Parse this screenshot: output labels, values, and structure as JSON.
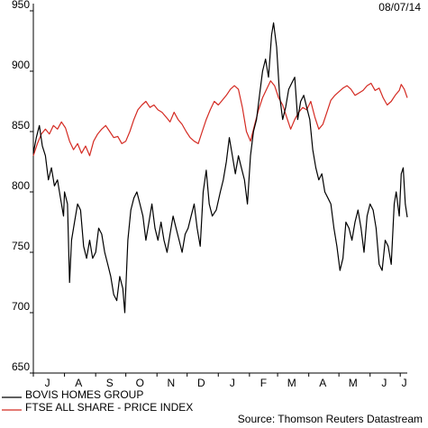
{
  "date_label": "08/07/14",
  "source": "Source: Thomson Reuters Datastream",
  "chart_data": {
    "type": "line",
    "title": "",
    "ylim": [
      650,
      950
    ],
    "yticks": [
      650,
      700,
      750,
      800,
      850,
      900,
      950
    ],
    "xlim": [
      "2013-07-01",
      "2014-07-08"
    ],
    "x_tick_labels": [
      "J",
      "A",
      "S",
      "O",
      "N",
      "D",
      "J",
      "F",
      "M",
      "A",
      "M",
      "J",
      "J"
    ],
    "x_tick_dates": [
      "2013-07-15",
      "2013-08-15",
      "2013-09-15",
      "2013-10-15",
      "2013-11-15",
      "2013-12-15",
      "2014-01-15",
      "2014-02-15",
      "2014-03-15",
      "2014-04-15",
      "2014-05-15",
      "2014-06-15",
      "2014-07-05"
    ],
    "grid": false,
    "legend_position": "bottom-left",
    "series": [
      {
        "name": "BOVIS HOMES GROUP",
        "color": "#000000",
        "points": [
          [
            "2013-07-01",
            832
          ],
          [
            "2013-07-04",
            845
          ],
          [
            "2013-07-07",
            855
          ],
          [
            "2013-07-10",
            838
          ],
          [
            "2013-07-13",
            830
          ],
          [
            "2013-07-16",
            810
          ],
          [
            "2013-07-19",
            820
          ],
          [
            "2013-07-22",
            805
          ],
          [
            "2013-07-25",
            810
          ],
          [
            "2013-07-28",
            795
          ],
          [
            "2013-07-31",
            780
          ],
          [
            "2013-08-01",
            800
          ],
          [
            "2013-08-04",
            790
          ],
          [
            "2013-08-06",
            725
          ],
          [
            "2013-08-08",
            760
          ],
          [
            "2013-08-11",
            775
          ],
          [
            "2013-08-14",
            790
          ],
          [
            "2013-08-17",
            785
          ],
          [
            "2013-08-20",
            755
          ],
          [
            "2013-08-23",
            745
          ],
          [
            "2013-08-26",
            760
          ],
          [
            "2013-08-29",
            745
          ],
          [
            "2013-09-01",
            750
          ],
          [
            "2013-09-04",
            770
          ],
          [
            "2013-09-07",
            765
          ],
          [
            "2013-09-10",
            750
          ],
          [
            "2013-09-13",
            740
          ],
          [
            "2013-09-16",
            730
          ],
          [
            "2013-09-19",
            715
          ],
          [
            "2013-09-22",
            710
          ],
          [
            "2013-09-25",
            730
          ],
          [
            "2013-09-28",
            720
          ],
          [
            "2013-09-30",
            700
          ],
          [
            "2013-10-03",
            760
          ],
          [
            "2013-10-06",
            785
          ],
          [
            "2013-10-09",
            795
          ],
          [
            "2013-10-12",
            800
          ],
          [
            "2013-10-15",
            790
          ],
          [
            "2013-10-18",
            780
          ],
          [
            "2013-10-21",
            760
          ],
          [
            "2013-10-24",
            775
          ],
          [
            "2013-10-27",
            790
          ],
          [
            "2013-10-30",
            770
          ],
          [
            "2013-11-02",
            760
          ],
          [
            "2013-11-05",
            775
          ],
          [
            "2013-11-08",
            760
          ],
          [
            "2013-11-11",
            750
          ],
          [
            "2013-11-14",
            765
          ],
          [
            "2013-11-17",
            780
          ],
          [
            "2013-11-20",
            770
          ],
          [
            "2013-11-23",
            760
          ],
          [
            "2013-11-26",
            750
          ],
          [
            "2013-11-29",
            765
          ],
          [
            "2013-12-02",
            770
          ],
          [
            "2013-12-05",
            780
          ],
          [
            "2013-12-08",
            790
          ],
          [
            "2013-12-11",
            770
          ],
          [
            "2013-12-14",
            755
          ],
          [
            "2013-12-17",
            800
          ],
          [
            "2013-12-20",
            818
          ],
          [
            "2013-12-23",
            790
          ],
          [
            "2013-12-26",
            780
          ],
          [
            "2013-12-30",
            785
          ],
          [
            "2014-01-03",
            800
          ],
          [
            "2014-01-06",
            810
          ],
          [
            "2014-01-09",
            825
          ],
          [
            "2014-01-12",
            845
          ],
          [
            "2014-01-15",
            830
          ],
          [
            "2014-01-18",
            815
          ],
          [
            "2014-01-21",
            830
          ],
          [
            "2014-01-24",
            820
          ],
          [
            "2014-01-27",
            810
          ],
          [
            "2014-01-30",
            790
          ],
          [
            "2014-02-02",
            830
          ],
          [
            "2014-02-05",
            850
          ],
          [
            "2014-02-08",
            860
          ],
          [
            "2014-02-11",
            880
          ],
          [
            "2014-02-14",
            900
          ],
          [
            "2014-02-17",
            910
          ],
          [
            "2014-02-20",
            895
          ],
          [
            "2014-02-23",
            930
          ],
          [
            "2014-02-25",
            940
          ],
          [
            "2014-02-28",
            920
          ],
          [
            "2014-03-03",
            880
          ],
          [
            "2014-03-06",
            860
          ],
          [
            "2014-03-09",
            870
          ],
          [
            "2014-03-12",
            885
          ],
          [
            "2014-03-15",
            890
          ],
          [
            "2014-03-18",
            895
          ],
          [
            "2014-03-21",
            860
          ],
          [
            "2014-03-24",
            875
          ],
          [
            "2014-03-27",
            880
          ],
          [
            "2014-03-30",
            870
          ],
          [
            "2014-04-02",
            860
          ],
          [
            "2014-04-05",
            835
          ],
          [
            "2014-04-08",
            820
          ],
          [
            "2014-04-11",
            810
          ],
          [
            "2014-04-14",
            815
          ],
          [
            "2014-04-17",
            800
          ],
          [
            "2014-04-20",
            795
          ],
          [
            "2014-04-23",
            790
          ],
          [
            "2014-04-26",
            770
          ],
          [
            "2014-04-29",
            755
          ],
          [
            "2014-05-02",
            735
          ],
          [
            "2014-05-05",
            745
          ],
          [
            "2014-05-08",
            775
          ],
          [
            "2014-05-11",
            770
          ],
          [
            "2014-05-14",
            760
          ],
          [
            "2014-05-17",
            775
          ],
          [
            "2014-05-20",
            785
          ],
          [
            "2014-05-23",
            770
          ],
          [
            "2014-05-26",
            750
          ],
          [
            "2014-05-29",
            780
          ],
          [
            "2014-06-01",
            790
          ],
          [
            "2014-06-04",
            785
          ],
          [
            "2014-06-07",
            770
          ],
          [
            "2014-06-10",
            740
          ],
          [
            "2014-06-13",
            735
          ],
          [
            "2014-06-16",
            760
          ],
          [
            "2014-06-19",
            755
          ],
          [
            "2014-06-22",
            740
          ],
          [
            "2014-06-25",
            790
          ],
          [
            "2014-06-27",
            800
          ],
          [
            "2014-06-30",
            780
          ],
          [
            "2014-07-02",
            815
          ],
          [
            "2014-07-04",
            820
          ],
          [
            "2014-07-06",
            790
          ],
          [
            "2014-07-08",
            779
          ]
        ]
      },
      {
        "name": "FTSE ALL SHARE - PRICE INDEX",
        "color": "#d42a22",
        "points": [
          [
            "2013-07-01",
            830
          ],
          [
            "2013-07-05",
            840
          ],
          [
            "2013-07-09",
            848
          ],
          [
            "2013-07-13",
            852
          ],
          [
            "2013-07-17",
            848
          ],
          [
            "2013-07-21",
            855
          ],
          [
            "2013-07-25",
            852
          ],
          [
            "2013-07-29",
            858
          ],
          [
            "2013-08-02",
            853
          ],
          [
            "2013-08-06",
            842
          ],
          [
            "2013-08-10",
            835
          ],
          [
            "2013-08-14",
            840
          ],
          [
            "2013-08-18",
            832
          ],
          [
            "2013-08-22",
            838
          ],
          [
            "2013-08-26",
            830
          ],
          [
            "2013-08-30",
            842
          ],
          [
            "2013-09-03",
            848
          ],
          [
            "2013-09-07",
            852
          ],
          [
            "2013-09-11",
            855
          ],
          [
            "2013-09-15",
            850
          ],
          [
            "2013-09-19",
            845
          ],
          [
            "2013-09-23",
            846
          ],
          [
            "2013-09-27",
            840
          ],
          [
            "2013-10-01",
            842
          ],
          [
            "2013-10-05",
            850
          ],
          [
            "2013-10-09",
            860
          ],
          [
            "2013-10-13",
            868
          ],
          [
            "2013-10-17",
            872
          ],
          [
            "2013-10-21",
            875
          ],
          [
            "2013-10-25",
            870
          ],
          [
            "2013-10-29",
            872
          ],
          [
            "2013-11-02",
            868
          ],
          [
            "2013-11-06",
            866
          ],
          [
            "2013-11-10",
            862
          ],
          [
            "2013-11-14",
            858
          ],
          [
            "2013-11-18",
            866
          ],
          [
            "2013-11-22",
            860
          ],
          [
            "2013-11-26",
            856
          ],
          [
            "2013-11-30",
            850
          ],
          [
            "2013-12-04",
            845
          ],
          [
            "2013-12-08",
            842
          ],
          [
            "2013-12-12",
            840
          ],
          [
            "2013-12-16",
            850
          ],
          [
            "2013-12-20",
            860
          ],
          [
            "2013-12-24",
            868
          ],
          [
            "2013-12-28",
            875
          ],
          [
            "2014-01-01",
            872
          ],
          [
            "2014-01-05",
            876
          ],
          [
            "2014-01-09",
            880
          ],
          [
            "2014-01-13",
            885
          ],
          [
            "2014-01-17",
            888
          ],
          [
            "2014-01-21",
            885
          ],
          [
            "2014-01-25",
            870
          ],
          [
            "2014-01-29",
            850
          ],
          [
            "2014-02-02",
            842
          ],
          [
            "2014-02-06",
            855
          ],
          [
            "2014-02-10",
            868
          ],
          [
            "2014-02-14",
            878
          ],
          [
            "2014-02-18",
            885
          ],
          [
            "2014-02-22",
            892
          ],
          [
            "2014-02-26",
            888
          ],
          [
            "2014-03-02",
            878
          ],
          [
            "2014-03-06",
            872
          ],
          [
            "2014-03-10",
            862
          ],
          [
            "2014-03-14",
            852
          ],
          [
            "2014-03-18",
            860
          ],
          [
            "2014-03-22",
            866
          ],
          [
            "2014-03-26",
            870
          ],
          [
            "2014-03-30",
            868
          ],
          [
            "2014-04-03",
            875
          ],
          [
            "2014-04-07",
            862
          ],
          [
            "2014-04-11",
            852
          ],
          [
            "2014-04-15",
            856
          ],
          [
            "2014-04-19",
            866
          ],
          [
            "2014-04-23",
            876
          ],
          [
            "2014-04-27",
            880
          ],
          [
            "2014-05-01",
            883
          ],
          [
            "2014-05-05",
            886
          ],
          [
            "2014-05-09",
            888
          ],
          [
            "2014-05-13",
            885
          ],
          [
            "2014-05-17",
            880
          ],
          [
            "2014-05-21",
            882
          ],
          [
            "2014-05-25",
            884
          ],
          [
            "2014-05-29",
            888
          ],
          [
            "2014-06-02",
            890
          ],
          [
            "2014-06-06",
            884
          ],
          [
            "2014-06-10",
            886
          ],
          [
            "2014-06-14",
            878
          ],
          [
            "2014-06-18",
            872
          ],
          [
            "2014-06-22",
            875
          ],
          [
            "2014-06-26",
            880
          ],
          [
            "2014-06-30",
            884
          ],
          [
            "2014-07-02",
            889
          ],
          [
            "2014-07-05",
            885
          ],
          [
            "2014-07-08",
            878
          ]
        ]
      }
    ]
  }
}
